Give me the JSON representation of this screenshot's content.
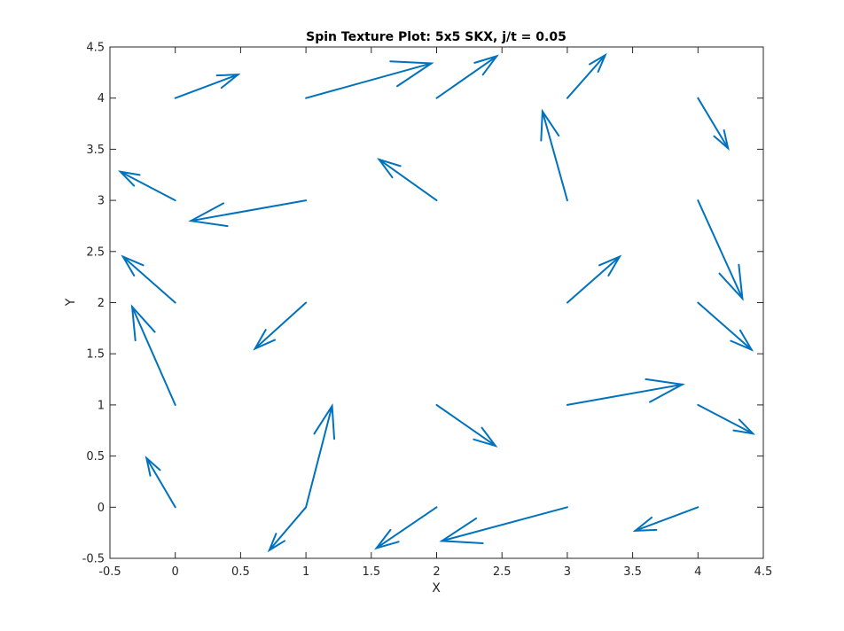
{
  "chart_data": {
    "type": "quiver",
    "title": "Spin Texture Plot: 5x5 SKX, j/t = 0.05",
    "xlabel": "X",
    "ylabel": "Y",
    "xlim": [
      -0.5,
      4.5
    ],
    "ylim": [
      -0.5,
      4.5
    ],
    "x_ticks": [
      "-0.5",
      "0",
      "0.5",
      "1",
      "1.5",
      "2",
      "2.5",
      "3",
      "3.5",
      "4",
      "4.5"
    ],
    "y_ticks": [
      "-0.5",
      "0",
      "0.5",
      "1",
      "1.5",
      "2",
      "2.5",
      "3",
      "3.5",
      "4",
      "4.5"
    ],
    "grid": false,
    "box": true,
    "color": "#0072BD",
    "arrows": [
      {
        "x": 0,
        "y": 4,
        "u": 0.48,
        "v": 0.23
      },
      {
        "x": 1,
        "y": 4,
        "u": 0.96,
        "v": 0.34
      },
      {
        "x": 2,
        "y": 4,
        "u": 0.46,
        "v": 0.41
      },
      {
        "x": 3,
        "y": 4,
        "u": 0.29,
        "v": 0.42
      },
      {
        "x": 4,
        "y": 4,
        "u": 0.23,
        "v": -0.49
      },
      {
        "x": 0,
        "y": 3,
        "u": -0.42,
        "v": 0.28
      },
      {
        "x": 1,
        "y": 3,
        "u": -0.88,
        "v": -0.2
      },
      {
        "x": 2,
        "y": 3,
        "u": -0.44,
        "v": 0.4
      },
      {
        "x": 3,
        "y": 3,
        "u": -0.19,
        "v": 0.87
      },
      {
        "x": 4,
        "y": 3,
        "u": 0.34,
        "v": -0.96
      },
      {
        "x": 0,
        "y": 2,
        "u": -0.4,
        "v": 0.45
      },
      {
        "x": 1,
        "y": 2,
        "u": -0.39,
        "v": -0.45
      },
      {
        "x": 3,
        "y": 2,
        "u": 0.4,
        "v": 0.45
      },
      {
        "x": 4,
        "y": 2,
        "u": 0.41,
        "v": -0.46
      },
      {
        "x": 0,
        "y": 1,
        "u": -0.33,
        "v": 0.96
      },
      {
        "x": 2,
        "y": 1,
        "u": 0.45,
        "v": -0.4
      },
      {
        "x": 3,
        "y": 1,
        "u": 0.88,
        "v": 0.2
      },
      {
        "x": 4,
        "y": 1,
        "u": 0.42,
        "v": -0.28
      },
      {
        "x": 0,
        "y": 0,
        "u": -0.22,
        "v": 0.48
      },
      {
        "x": 1,
        "y": 0,
        "u": 0.2,
        "v": 0.99
      },
      {
        "x": 1,
        "y": 0,
        "u": -0.28,
        "v": -0.42
      },
      {
        "x": 2,
        "y": 0,
        "u": -0.46,
        "v": -0.4
      },
      {
        "x": 3,
        "y": 0,
        "u": -0.96,
        "v": -0.33
      },
      {
        "x": 4,
        "y": 0,
        "u": -0.48,
        "v": -0.23
      }
    ]
  }
}
